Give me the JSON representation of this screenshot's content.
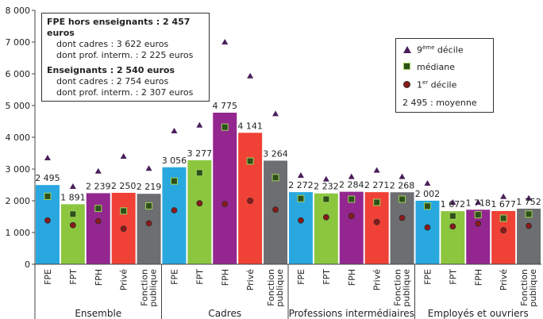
{
  "chart_data": {
    "type": "bar",
    "ylim": [
      0,
      8000
    ],
    "yticks": [
      "0",
      "1 000",
      "2 000",
      "3 000",
      "4 000",
      "5 000",
      "6 000",
      "7 000",
      "8 000"
    ],
    "groups": [
      {
        "label": "Ensemble",
        "categories": [
          "FPE",
          "FPT",
          "FPH",
          "Privé",
          "Fonction publique"
        ]
      },
      {
        "label": "Cadres",
        "categories": [
          "FPE",
          "FPT",
          "FPH",
          "Privé",
          "Fonction publique"
        ]
      },
      {
        "label": "Professions intermédiaires",
        "categories": [
          "FPE",
          "FPT",
          "FPH",
          "Privé",
          "Fonction publique"
        ]
      },
      {
        "label": "Employés et ouvriers",
        "categories": [
          "FPE",
          "FPT",
          "FPH",
          "Privé",
          "Fonction publique"
        ]
      }
    ],
    "bar_colors": [
      "#29a8e0",
      "#8cc63f",
      "#93278f",
      "#ef4136",
      "#6d6e71"
    ],
    "series": [
      {
        "name": "moyenne",
        "values": [
          2495,
          1891,
          2239,
          2250,
          2219,
          3056,
          3277,
          4775,
          4141,
          3264,
          2272,
          2232,
          2284,
          2271,
          2268,
          2002,
          1672,
          1718,
          1677,
          1752
        ]
      },
      {
        "name": "médiane",
        "values": [
          2140,
          1580,
          1760,
          1680,
          1840,
          2620,
          2880,
          4320,
          3250,
          2730,
          2070,
          2050,
          2050,
          1950,
          2050,
          1830,
          1520,
          1560,
          1450,
          1580
        ]
      },
      {
        "name": "9ème décile",
        "values": [
          3350,
          2450,
          2930,
          3400,
          3020,
          4200,
          4380,
          7000,
          5930,
          4740,
          2800,
          2680,
          2760,
          2960,
          2760,
          2550,
          1950,
          1950,
          2130,
          2080
        ]
      },
      {
        "name": "1er décile",
        "values": [
          1380,
          1230,
          1360,
          1120,
          1290,
          1700,
          1920,
          1900,
          2000,
          1720,
          1380,
          1480,
          1520,
          1330,
          1460,
          1160,
          1190,
          1280,
          1070,
          1210
        ]
      }
    ],
    "bar_labels": [
      "2 495",
      "1 891",
      "2 239",
      "2 250",
      "2 219",
      "3 056",
      "3 277",
      "4 775",
      "4 141",
      "3 264",
      "2 272",
      "2 232",
      "2 284",
      "2 271",
      "2 268",
      "2 002",
      "1 672",
      "1 718",
      "1 677",
      "1 752"
    ],
    "annotation": {
      "line1": "FPE hors enseignants : 2 457 euros",
      "line2": "dont cadres : 3 622 euros",
      "line3": "dont prof. interm. : 2 225 euros",
      "line4": "Enseignants : 2 540 euros",
      "line5": "dont cadres : 2 754 euros",
      "line6": "dont prof. interm. : 2 307 euros"
    },
    "legend": {
      "d9_main": "9",
      "d9_sup": "ème",
      "d9_rest": " décile",
      "median": "médiane",
      "d1_main": "1",
      "d1_sup": "er",
      "d1_rest": " décile",
      "mean": "2 495 : moyenne"
    },
    "legend_position": "top-right"
  }
}
